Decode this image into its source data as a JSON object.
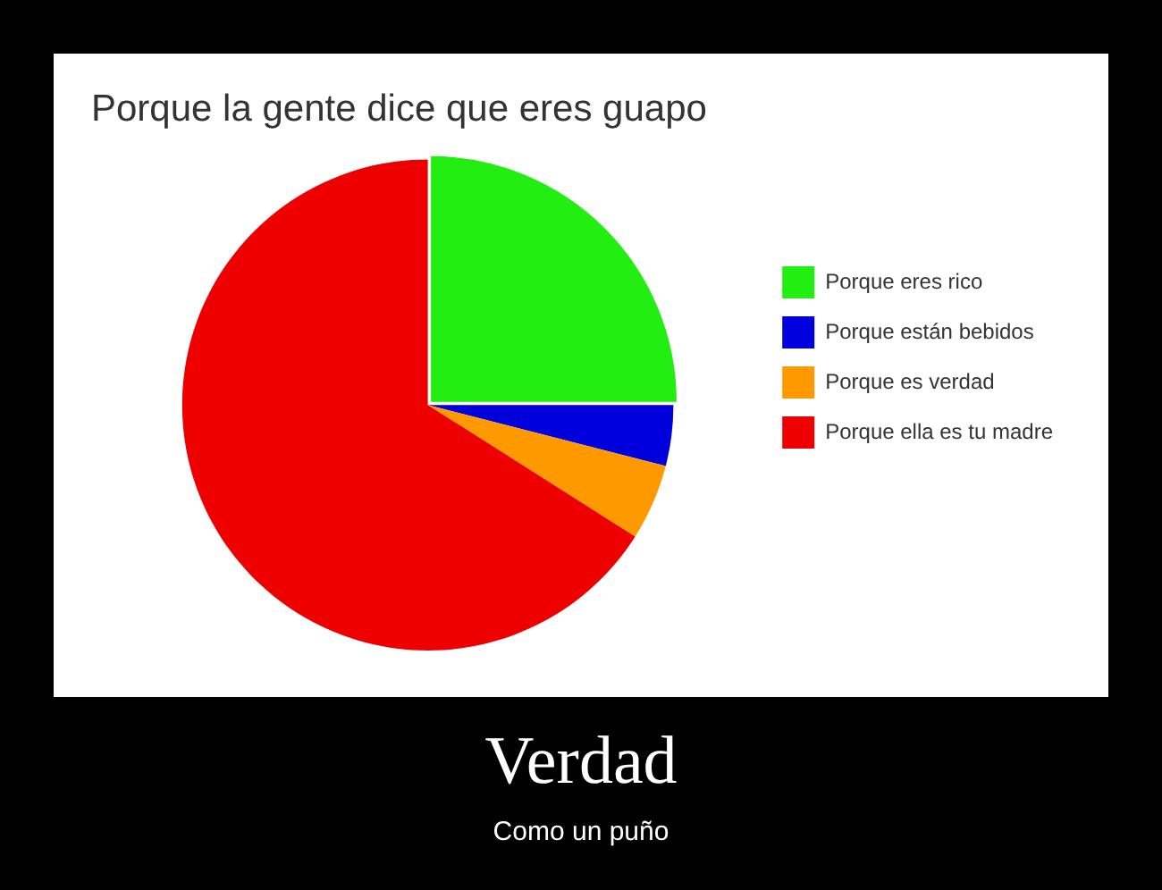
{
  "chart_data": {
    "type": "pie",
    "title": "Porque la gente dice que eres guapo",
    "categories": [
      "Porque eres rico",
      "Porque están bebidos",
      "Porque es verdad",
      "Porque ella es tu madre"
    ],
    "values": [
      25,
      4,
      5,
      66
    ],
    "colors": [
      "#22ee11",
      "#0000dd",
      "#ff9900",
      "#ee0000"
    ],
    "legend": "right",
    "annotations": [
      "Verdad",
      "Como un puño"
    ]
  }
}
